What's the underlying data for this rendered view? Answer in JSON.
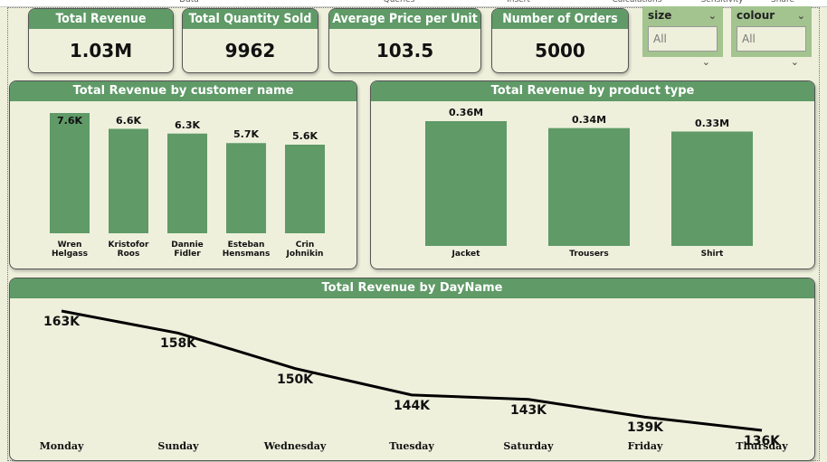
{
  "ribbon": [
    "Data",
    "Queries",
    "Insert",
    "Calculations",
    "Sensitivity",
    "Share"
  ],
  "cards": [
    {
      "title": "Total Revenue",
      "value": "1.03M"
    },
    {
      "title": "Total Quantity Sold",
      "value": 9962
    },
    {
      "title": "Average Price per Unit",
      "value": 103.5
    },
    {
      "title": "Number of Orders",
      "value": 5000
    }
  ],
  "filters": [
    {
      "label": "size",
      "selection": "All"
    },
    {
      "label": "colour",
      "selection": "All"
    }
  ],
  "chart_data": [
    {
      "type": "bar",
      "title": "Total Revenue by customer name",
      "categories": [
        "Wren Helgass",
        "Kristofor Roos",
        "Dannie Fidler",
        "Esteban Hensmans",
        "Crin Johnikin"
      ],
      "values": [
        7600,
        6600,
        6300,
        5700,
        5600
      ],
      "value_labels": [
        "7.6K",
        "6.6K",
        "6.3K",
        "5.7K",
        "5.6K"
      ],
      "color": "#5f9a67"
    },
    {
      "type": "bar",
      "title": "Total Revenue by product type",
      "categories": [
        "Jacket",
        "Trousers",
        "Shirt"
      ],
      "values": [
        360000,
        340000,
        330000
      ],
      "value_labels": [
        "0.36M",
        "0.34M",
        "0.33M"
      ],
      "color": "#5f9a67"
    },
    {
      "type": "line",
      "title": "Total Revenue by DayName",
      "categories": [
        "Monday",
        "Sunday",
        "Wednesday",
        "Tuesday",
        "Saturday",
        "Friday",
        "Thursday"
      ],
      "values": [
        163000,
        158000,
        150000,
        144000,
        143000,
        139000,
        136000
      ],
      "value_labels": [
        "163K",
        "158K",
        "150K",
        "144K",
        "143K",
        "139K",
        "136K"
      ],
      "color": "#000000"
    }
  ]
}
